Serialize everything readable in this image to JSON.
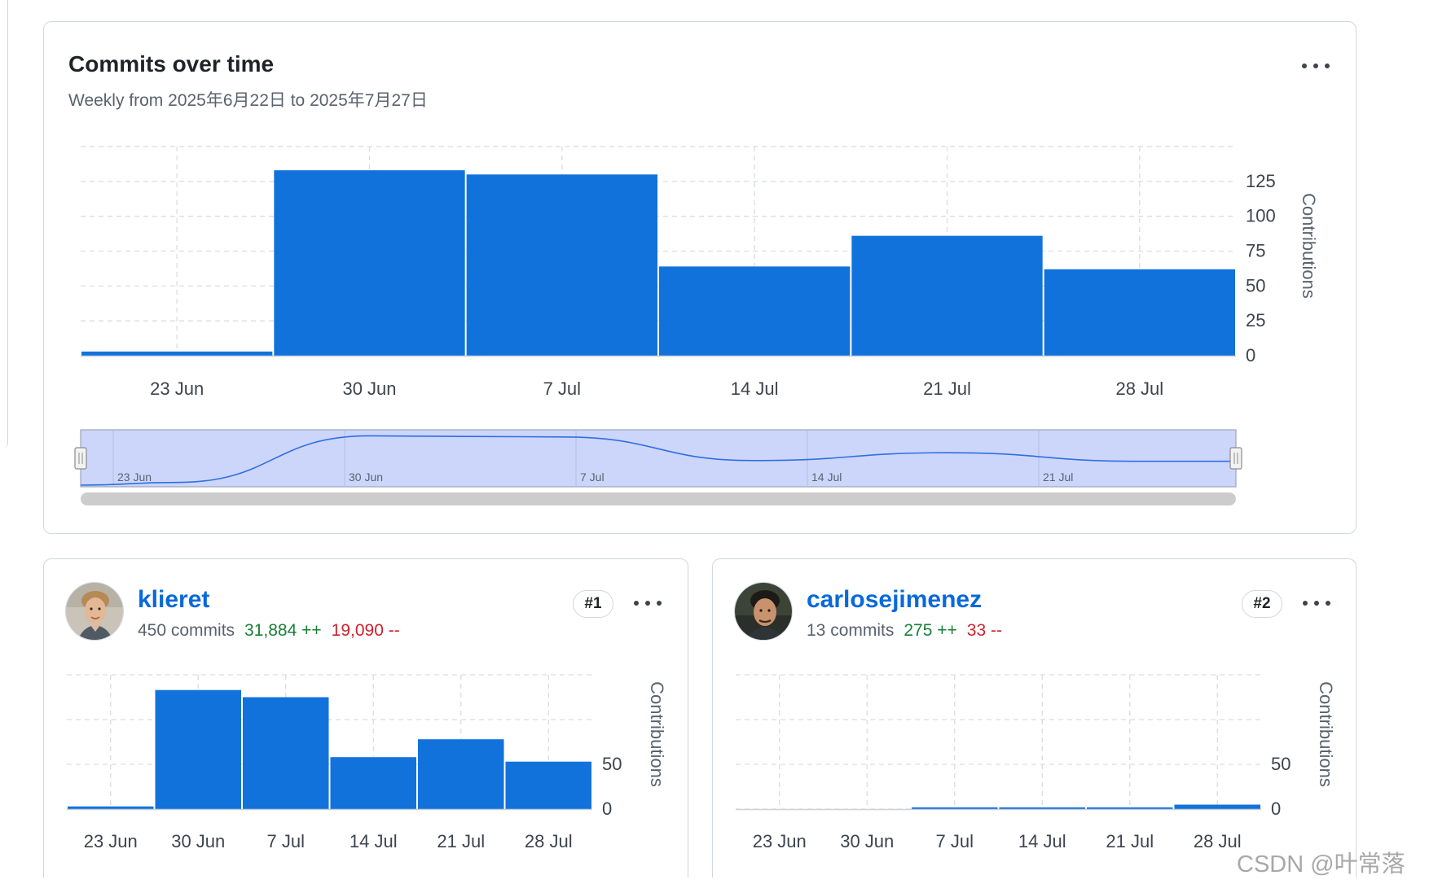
{
  "main_card": {
    "title": "Commits over time",
    "subtitle": "Weekly from 2025年6月22日 to 2025年7月27日",
    "ylabel": "Contributions"
  },
  "contributors": [
    {
      "rank": "#1",
      "login": "klieret",
      "commits": "450 commits",
      "additions": "31,884 ++",
      "deletions": "19,090 --",
      "ylabel": "Contributions"
    },
    {
      "rank": "#2",
      "login": "carlosejimenez",
      "commits": "13 commits",
      "additions": "275 ++",
      "deletions": "33 --",
      "ylabel": "Contributions"
    }
  ],
  "chart_data": [
    {
      "type": "bar",
      "title": "Commits over time",
      "subtitle": "Weekly from 2025年6月22日 to 2025年7月27日",
      "categories": [
        "23 Jun",
        "30 Jun",
        "7 Jul",
        "14 Jul",
        "21 Jul",
        "28 Jul"
      ],
      "values": [
        3,
        133,
        130,
        64,
        86,
        62
      ],
      "ylabel": "Contributions",
      "yticks": [
        0,
        25,
        50,
        75,
        100,
        125
      ],
      "ylim": [
        0,
        150
      ],
      "grid": true,
      "navigator": {
        "tick_labels": [
          "23 Jun",
          "30 Jun",
          "7 Jul",
          "14 Jul",
          "21 Jul"
        ],
        "series_line": [
          3,
          133,
          130,
          64,
          86,
          62
        ]
      }
    },
    {
      "type": "bar",
      "title": "klieret",
      "categories": [
        "23 Jun",
        "30 Jun",
        "7 Jul",
        "14 Jul",
        "21 Jul",
        "28 Jul"
      ],
      "values": [
        3,
        133,
        125,
        58,
        78,
        53
      ],
      "ylabel": "Contributions",
      "yticks": [
        0,
        50
      ],
      "ylim": [
        0,
        150
      ],
      "grid": true
    },
    {
      "type": "bar",
      "title": "carlosejimenez",
      "categories": [
        "23 Jun",
        "30 Jun",
        "7 Jul",
        "14 Jul",
        "21 Jul",
        "28 Jul"
      ],
      "values": [
        0,
        0,
        2,
        2,
        2,
        5
      ],
      "ylabel": "Contributions",
      "yticks": [
        0,
        50
      ],
      "ylim": [
        0,
        150
      ],
      "grid": true
    }
  ],
  "watermark": "CSDN @叶常落",
  "colors": {
    "bar": "#1272dc",
    "grid": "#d9dde2",
    "navigator_bg": "#ccd6fb",
    "navigator_line": "#2f6fe0",
    "scrollbar": "#cccccc",
    "link": "#0969da",
    "additions": "#1a7f37",
    "deletions": "#cf222e"
  },
  "icons": [
    "kebab-menu-icon",
    "avatar-klieret",
    "avatar-carlosejimenez",
    "navigator-handle-icon"
  ]
}
